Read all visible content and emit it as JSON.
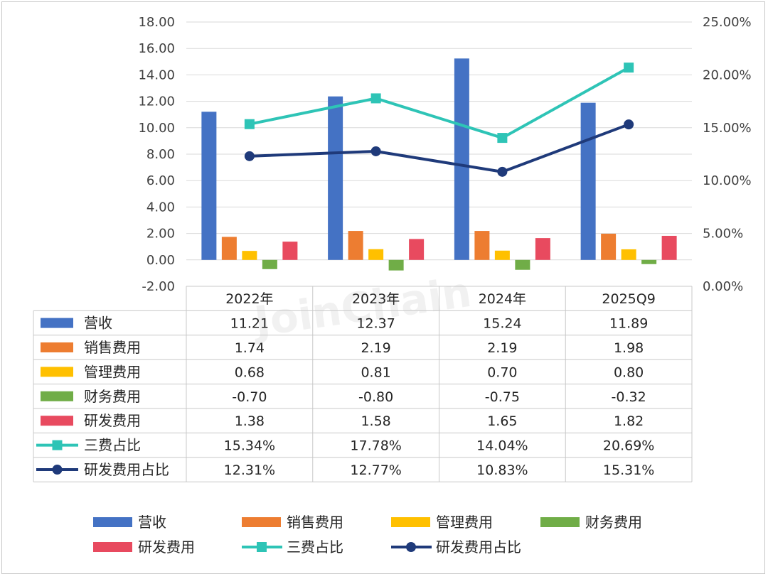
{
  "watermark": "JoinChain",
  "chart_data": {
    "type": "bar",
    "categories": [
      "2022年",
      "2023年",
      "2024年",
      "2025Q9"
    ],
    "left_axis": {
      "min": -2,
      "max": 18,
      "step": 2,
      "ticks": [
        "18.00",
        "16.00",
        "14.00",
        "12.00",
        "10.00",
        "8.00",
        "6.00",
        "4.00",
        "2.00",
        "0.00",
        "-2.00"
      ]
    },
    "right_axis": {
      "min": 0,
      "max": 25,
      "step": 5,
      "ticks": [
        "25.00%",
        "20.00%",
        "15.00%",
        "10.00%",
        "5.00%",
        "0.00%"
      ]
    },
    "series": [
      {
        "name": "营收",
        "kind": "bar",
        "axis": "left",
        "color": "#4472C4",
        "values": [
          11.21,
          12.37,
          15.24,
          11.89
        ],
        "labels": [
          "11.21",
          "12.37",
          "15.24",
          "11.89"
        ]
      },
      {
        "name": "销售费用",
        "kind": "bar",
        "axis": "left",
        "color": "#ED7D31",
        "values": [
          1.74,
          2.19,
          2.19,
          1.98
        ],
        "labels": [
          "1.74",
          "2.19",
          "2.19",
          "1.98"
        ]
      },
      {
        "name": "管理费用",
        "kind": "bar",
        "axis": "left",
        "color": "#FFC000",
        "values": [
          0.68,
          0.81,
          0.7,
          0.8
        ],
        "labels": [
          "0.68",
          "0.81",
          "0.70",
          "0.80"
        ]
      },
      {
        "name": "财务费用",
        "kind": "bar",
        "axis": "left",
        "color": "#70AD47",
        "values": [
          -0.7,
          -0.8,
          -0.75,
          -0.32
        ],
        "labels": [
          "-0.70",
          "-0.80",
          "-0.75",
          "-0.32"
        ]
      },
      {
        "name": "研发费用",
        "kind": "bar",
        "axis": "left",
        "color": "#E84A5F",
        "values": [
          1.38,
          1.58,
          1.65,
          1.82
        ],
        "labels": [
          "1.38",
          "1.58",
          "1.65",
          "1.82"
        ]
      },
      {
        "name": "三费占比",
        "kind": "line",
        "marker": "square",
        "axis": "right",
        "color": "#2EC4B6",
        "values": [
          15.34,
          17.78,
          14.04,
          20.69
        ],
        "labels": [
          "15.34%",
          "17.78%",
          "14.04%",
          "20.69%"
        ]
      },
      {
        "name": "研发费用占比",
        "kind": "line",
        "marker": "circle",
        "axis": "right",
        "color": "#1F3A7A",
        "values": [
          12.31,
          12.77,
          10.83,
          15.31
        ],
        "labels": [
          "12.31%",
          "12.77%",
          "10.83%",
          "15.31%"
        ]
      }
    ],
    "legend_position": "bottom",
    "grid": true
  }
}
